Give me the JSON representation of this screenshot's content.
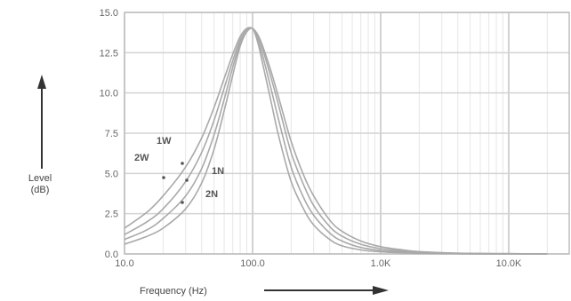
{
  "chart_data": {
    "type": "line",
    "xlabel": "Frequency (Hz)",
    "ylabel_line1": "Level",
    "ylabel_line2": "(dB)",
    "x_scale": "log",
    "xlim": [
      10,
      20000
    ],
    "ylim": [
      0,
      15
    ],
    "grid": true,
    "colors": {
      "curve": "#a9a9a9",
      "grid": "#d3d3d3",
      "border": "#bdbdbd",
      "text": "#666666"
    },
    "x_ticks": [
      {
        "value": 10,
        "label": "10.0"
      },
      {
        "value": 100,
        "label": "100.0"
      },
      {
        "value": 1000,
        "label": "1.0K"
      },
      {
        "value": 10000,
        "label": "10.0K"
      }
    ],
    "y_ticks": [
      {
        "value": 0,
        "label": "0.0"
      },
      {
        "value": 2.5,
        "label": "2.5"
      },
      {
        "value": 5,
        "label": "5.0"
      },
      {
        "value": 7.5,
        "label": "7.5"
      },
      {
        "value": 10,
        "label": "10.0"
      },
      {
        "value": 12.5,
        "label": "12.5"
      },
      {
        "value": 15,
        "label": "15.0"
      }
    ],
    "x": [
      10,
      15,
      20,
      30,
      40,
      50,
      60,
      70,
      80,
      90,
      100,
      110,
      120,
      140,
      160,
      200,
      250,
      300,
      400,
      500,
      700,
      1000,
      1500,
      2000,
      3000,
      5000,
      10000,
      20000
    ],
    "series": [
      {
        "name": "1W",
        "values": [
          1.6,
          2.6,
          3.6,
          5.4,
          7.2,
          9.1,
          10.9,
          12.4,
          13.5,
          14.0,
          14.0,
          13.6,
          12.9,
          11.3,
          9.7,
          7.0,
          4.9,
          3.6,
          2.1,
          1.4,
          0.8,
          0.45,
          0.25,
          0.15,
          0.08,
          0.04,
          0.02,
          0.0
        ]
      },
      {
        "name": "2W",
        "values": [
          1.2,
          2.0,
          2.8,
          4.5,
          6.3,
          8.3,
          10.3,
          12.0,
          13.3,
          13.9,
          14.0,
          13.5,
          12.7,
          10.9,
          9.2,
          6.3,
          4.3,
          3.0,
          1.7,
          1.1,
          0.6,
          0.33,
          0.18,
          0.1,
          0.05,
          0.02,
          0.01,
          0.0
        ]
      },
      {
        "name": "1N",
        "values": [
          0.9,
          1.5,
          2.2,
          3.6,
          5.3,
          7.4,
          9.6,
          11.6,
          13.1,
          13.8,
          14.0,
          13.3,
          12.3,
          10.2,
          8.3,
          5.4,
          3.5,
          2.4,
          1.3,
          0.8,
          0.4,
          0.22,
          0.12,
          0.06,
          0.03,
          0.01,
          0.0,
          0.0
        ]
      },
      {
        "name": "2N",
        "values": [
          0.6,
          1.1,
          1.6,
          2.8,
          4.4,
          6.5,
          8.9,
          11.1,
          12.9,
          13.8,
          14.0,
          13.1,
          11.8,
          9.4,
          7.3,
          4.5,
          2.8,
          1.8,
          0.9,
          0.5,
          0.25,
          0.13,
          0.07,
          0.04,
          0.02,
          0.0,
          0.0,
          0.0
        ]
      }
    ]
  }
}
